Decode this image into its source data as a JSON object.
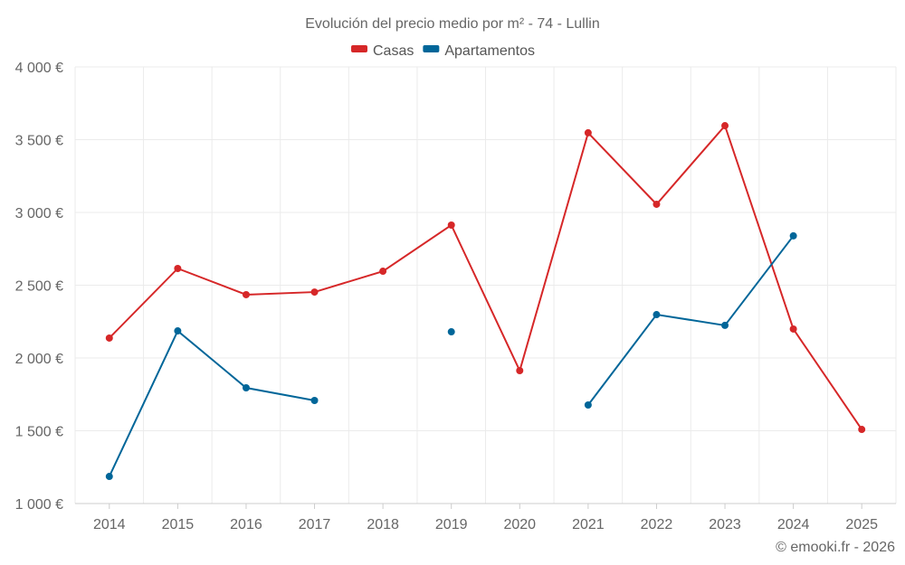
{
  "chart_data": {
    "type": "line",
    "title": "Evolución del precio medio por m² - 74 - Lullin",
    "credit": "© emooki.fr - 2026",
    "x": [
      "2014",
      "2015",
      "2016",
      "2017",
      "2018",
      "2019",
      "2020",
      "2021",
      "2022",
      "2023",
      "2024",
      "2025"
    ],
    "ylim": [
      1000,
      4000
    ],
    "yticks": [
      1000,
      1500,
      2000,
      2500,
      3000,
      3500,
      4000
    ],
    "ytick_labels": [
      "1 000 €",
      "1 500 €",
      "2 000 €",
      "2 500 €",
      "3 000 €",
      "3 500 €",
      "4 000 €"
    ],
    "grid": true,
    "legend_position": "top-center",
    "series": [
      {
        "name": "Casas",
        "color": "#d62728",
        "values": [
          2137,
          2615,
          2435,
          2453,
          2596,
          2913,
          1913,
          3547,
          3056,
          3596,
          2199,
          1509
        ]
      },
      {
        "name": "Apartamentos",
        "color": "#006699",
        "values": [
          1186,
          2186,
          1795,
          1708,
          null,
          2180,
          null,
          1677,
          2298,
          2224,
          2839,
          null
        ]
      }
    ]
  }
}
